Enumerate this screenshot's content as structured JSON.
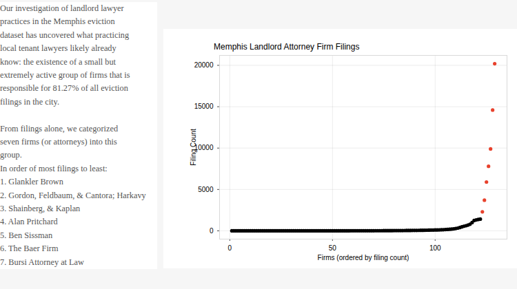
{
  "article": {
    "paragraphs": [
      [
        "Our investigation of landlord lawyer",
        "practices in the Memphis eviction",
        "dataset has uncovered what practicing",
        "local tenant lawyers likely already",
        "know: the existence of a small but",
        "extremely active group of firms that is",
        "responsible for 81.27% of all eviction",
        "filings in the city."
      ],
      [
        "From filings alone, we categorized",
        "seven firms (or attorneys) into this",
        "group.",
        "In order of most filings to least:"
      ]
    ],
    "list": [
      "1. Glankler Brown",
      "2. Gordon, Feldbaum, & Cantora; Harkavy",
      "3. Shainberg, & Kaplan",
      "4. Alan Pritchard",
      "5. Ben Sissman",
      "6. The Baer Firm",
      "7. Bursi Attorney at Law"
    ]
  },
  "chart_data": {
    "type": "scatter",
    "title": "Memphis Landlord Attorney Firm Filings",
    "x_label": "Firms (ordered by filing count)",
    "y_label": "Filing Count",
    "x": [
      1,
      2,
      3,
      4,
      5,
      6,
      7,
      8,
      9,
      10,
      11,
      12,
      13,
      14,
      15,
      16,
      17,
      18,
      19,
      20,
      21,
      22,
      23,
      24,
      25,
      26,
      27,
      28,
      29,
      30,
      31,
      32,
      33,
      34,
      35,
      36,
      37,
      38,
      39,
      40,
      41,
      42,
      43,
      44,
      45,
      46,
      47,
      48,
      49,
      50,
      51,
      52,
      53,
      54,
      55,
      56,
      57,
      58,
      59,
      60,
      61,
      62,
      63,
      64,
      65,
      66,
      67,
      68,
      69,
      70,
      71,
      72,
      73,
      74,
      75,
      76,
      77,
      78,
      79,
      80,
      81,
      82,
      83,
      84,
      85,
      86,
      87,
      88,
      89,
      90,
      91,
      92,
      93,
      94,
      95,
      96,
      97,
      98,
      99,
      100,
      101,
      102,
      103,
      104,
      105,
      106,
      107,
      108,
      109,
      110,
      111,
      112,
      113,
      114,
      115,
      116,
      117,
      118,
      119,
      120,
      121,
      122,
      123,
      124,
      125,
      126,
      127,
      128,
      129
    ],
    "values": [
      1,
      1,
      1,
      1,
      1,
      1,
      1,
      1,
      1,
      1,
      1,
      1,
      1,
      1,
      1,
      1,
      1,
      1,
      1,
      1,
      1,
      1,
      1,
      1,
      1,
      2,
      2,
      2,
      2,
      2,
      2,
      2,
      2,
      2,
      2,
      3,
      3,
      3,
      3,
      3,
      3,
      3,
      4,
      4,
      4,
      4,
      5,
      5,
      5,
      5,
      6,
      6,
      6,
      7,
      7,
      7,
      8,
      8,
      9,
      9,
      10,
      10,
      11,
      11,
      12,
      13,
      13,
      14,
      15,
      16,
      17,
      18,
      19,
      20,
      21,
      22,
      24,
      25,
      27,
      29,
      31,
      33,
      35,
      37,
      40,
      42,
      45,
      48,
      51,
      55,
      58,
      62,
      66,
      70,
      75,
      80,
      86,
      92,
      98,
      105,
      112,
      120,
      130,
      140,
      155,
      170,
      190,
      210,
      240,
      280,
      330,
      400,
      480,
      560,
      620,
      700,
      800,
      1000,
      1250,
      1320,
      1380,
      1420,
      2300,
      3700,
      5900,
      7800,
      9900,
      14600,
      20200
    ],
    "colors": [
      "#000000",
      "#000000",
      "#000000",
      "#000000",
      "#000000",
      "#000000",
      "#000000",
      "#000000",
      "#000000",
      "#000000",
      "#000000",
      "#000000",
      "#000000",
      "#000000",
      "#000000",
      "#000000",
      "#000000",
      "#000000",
      "#000000",
      "#000000",
      "#000000",
      "#000000",
      "#000000",
      "#000000",
      "#000000",
      "#000000",
      "#000000",
      "#000000",
      "#000000",
      "#000000",
      "#000000",
      "#000000",
      "#000000",
      "#000000",
      "#000000",
      "#000000",
      "#000000",
      "#000000",
      "#000000",
      "#000000",
      "#000000",
      "#000000",
      "#000000",
      "#000000",
      "#000000",
      "#000000",
      "#000000",
      "#000000",
      "#000000",
      "#000000",
      "#000000",
      "#000000",
      "#000000",
      "#000000",
      "#000000",
      "#000000",
      "#000000",
      "#000000",
      "#000000",
      "#000000",
      "#000000",
      "#000000",
      "#000000",
      "#000000",
      "#000000",
      "#000000",
      "#000000",
      "#000000",
      "#000000",
      "#000000",
      "#000000",
      "#000000",
      "#000000",
      "#000000",
      "#000000",
      "#000000",
      "#000000",
      "#000000",
      "#000000",
      "#000000",
      "#000000",
      "#000000",
      "#000000",
      "#000000",
      "#000000",
      "#000000",
      "#000000",
      "#000000",
      "#000000",
      "#000000",
      "#000000",
      "#000000",
      "#000000",
      "#000000",
      "#000000",
      "#000000",
      "#000000",
      "#000000",
      "#000000",
      "#000000",
      "#000000",
      "#000000",
      "#000000",
      "#000000",
      "#000000",
      "#000000",
      "#000000",
      "#000000",
      "#000000",
      "#000000",
      "#000000",
      "#000000",
      "#000000",
      "#000000",
      "#000000",
      "#000000",
      "#000000",
      "#000000",
      "#000000",
      "#000000",
      "#000000",
      "#000000",
      "#e8412c",
      "#e8412c",
      "#e8412c",
      "#e8412c",
      "#e8412c",
      "#e8412c",
      "#e8412c"
    ],
    "xlim": [
      -5,
      135
    ],
    "xticks": [
      0,
      50,
      100
    ],
    "ylim": [
      -1000,
      21200
    ],
    "yticks": [
      0,
      5000,
      10000,
      15000,
      20000
    ],
    "grid": true
  }
}
